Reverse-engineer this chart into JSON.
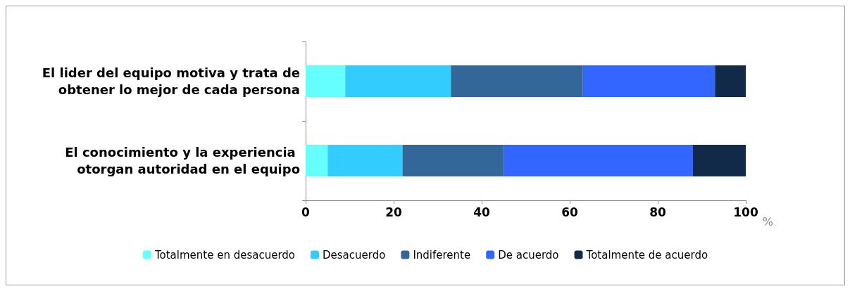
{
  "chart_data": {
    "type": "bar",
    "orientation": "horizontal",
    "stacked": true,
    "xlabel": "%",
    "categories": [
      "El lider del equipo motiva y trata de obtener lo mejor de cada persona",
      "El conocimiento y la experiencia otorgan autoridad en el equipo"
    ],
    "series": [
      {
        "name": "Totalmente en desacuerdo",
        "color": "#66ffff",
        "values": [
          9,
          5
        ]
      },
      {
        "name": "Desacuerdo",
        "color": "#33ccff",
        "values": [
          24,
          17
        ]
      },
      {
        "name": "Indiferente",
        "color": "#336699",
        "values": [
          30,
          23
        ]
      },
      {
        "name": "De acuerdo",
        "color": "#3366ff",
        "values": [
          30,
          43
        ]
      },
      {
        "name": "Totalmente de acuerdo",
        "color": "#112a4a",
        "values": [
          7,
          12
        ]
      }
    ],
    "xlim": [
      0,
      100
    ],
    "xticks": [
      0,
      20,
      40,
      60,
      80,
      100
    ],
    "grid": false,
    "legend": "bottom"
  }
}
